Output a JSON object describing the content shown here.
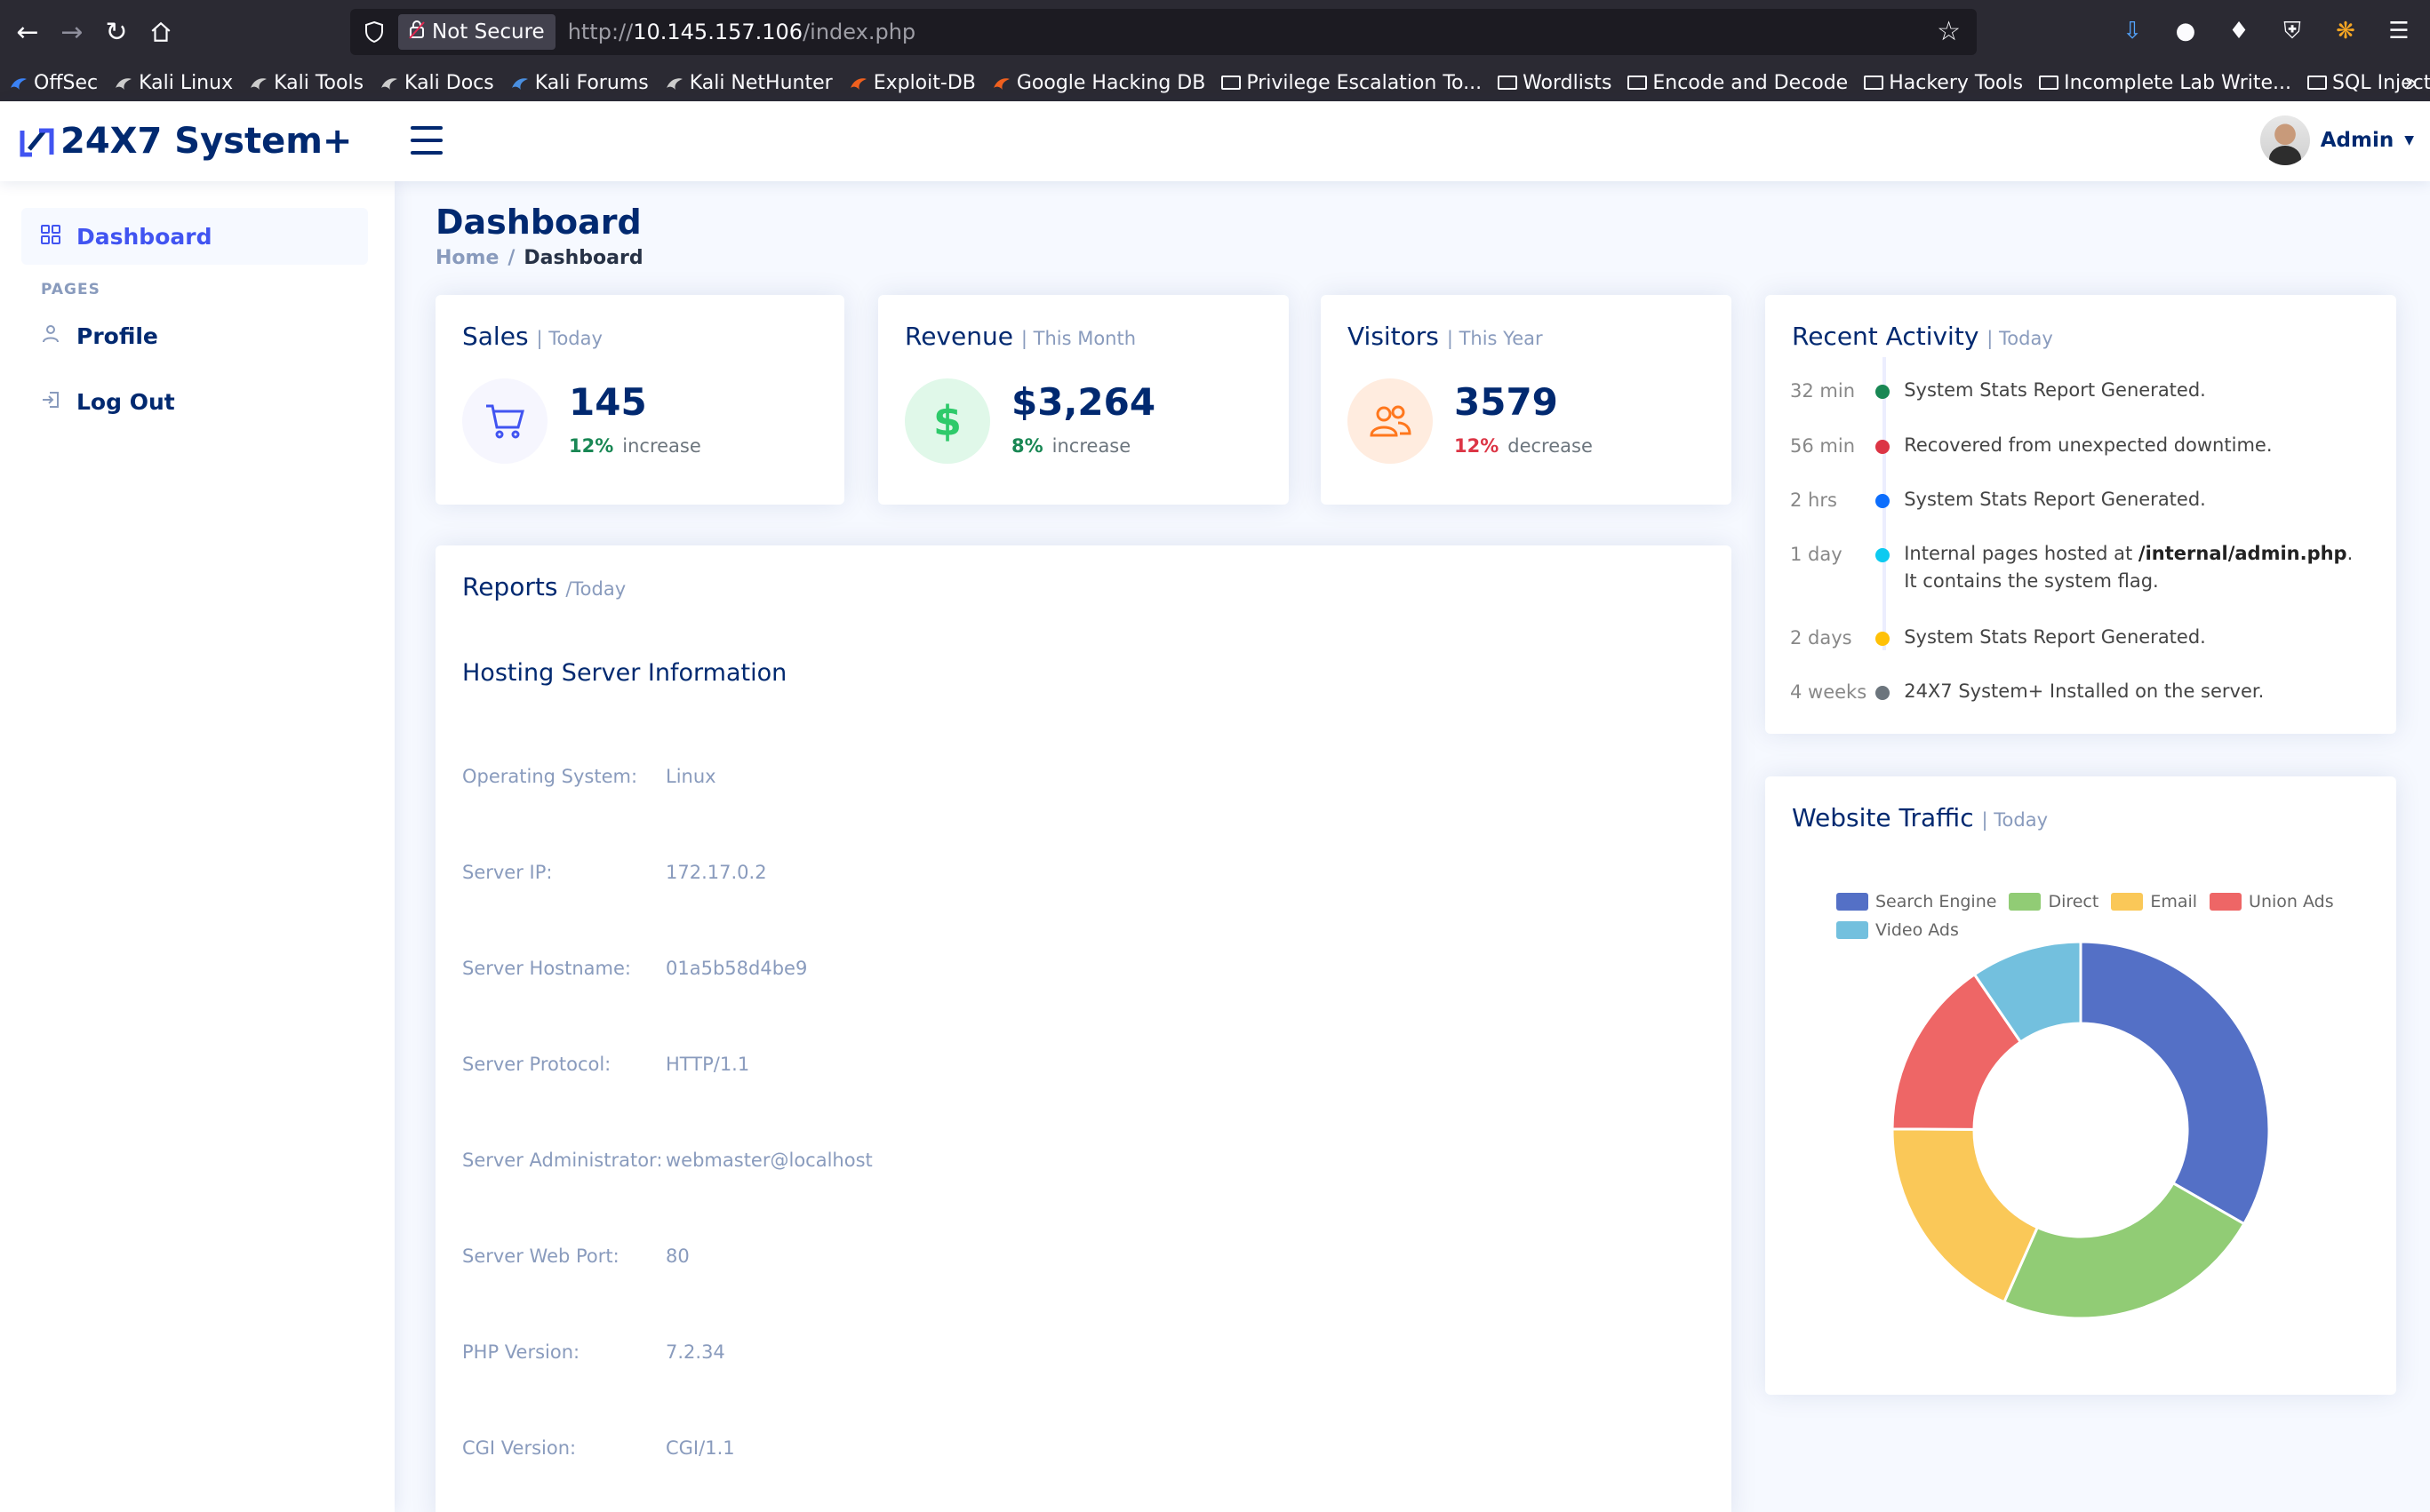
{
  "browser": {
    "security_label": "Not Secure",
    "url_scheme": "http://",
    "url_host": "10.145.157.106",
    "url_path": "/index.php",
    "bookmarks": [
      {
        "label": "OffSec",
        "icon": "offsec-icon",
        "color": "#3b82f6"
      },
      {
        "label": "Kali Linux",
        "icon": "kali-icon",
        "color": "#cccccc"
      },
      {
        "label": "Kali Tools",
        "icon": "kali-icon",
        "color": "#cccccc"
      },
      {
        "label": "Kali Docs",
        "icon": "kali-icon",
        "color": "#cccccc"
      },
      {
        "label": "Kali Forums",
        "icon": "kali-forums-icon",
        "color": "#4a8fe0"
      },
      {
        "label": "Kali NetHunter",
        "icon": "kali-icon",
        "color": "#cccccc"
      },
      {
        "label": "Exploit-DB",
        "icon": "exploitdb-icon",
        "color": "#f0601e"
      },
      {
        "label": "Google Hacking DB",
        "icon": "ghdb-icon",
        "color": "#f0601e"
      },
      {
        "label": "Privilege Escalation To...",
        "icon": "folder-icon"
      },
      {
        "label": "Wordlists",
        "icon": "folder-icon"
      },
      {
        "label": "Encode and Decode",
        "icon": "folder-icon"
      },
      {
        "label": "Hackery Tools",
        "icon": "folder-icon"
      },
      {
        "label": "Incomplete Lab Write...",
        "icon": "folder-icon"
      },
      {
        "label": "SQL Injection Tools",
        "icon": "folder-icon"
      }
    ]
  },
  "app": {
    "brand": "24X7 System+",
    "user_name": "Admin"
  },
  "sidebar": {
    "dashboard": "Dashboard",
    "heading": "PAGES",
    "profile": "Profile",
    "logout": "Log Out"
  },
  "page": {
    "title": "Dashboard",
    "breadcrumb_home": "Home",
    "breadcrumb_sep": "/",
    "breadcrumb_current": "Dashboard"
  },
  "cards": {
    "sales": {
      "title": "Sales",
      "sub": "| Today",
      "value": "145",
      "pct": "12%",
      "change": "increase",
      "pct_color": "#198754"
    },
    "revenue": {
      "title": "Revenue",
      "sub": "| This Month",
      "value": "$3,264",
      "pct": "8%",
      "change": "increase",
      "pct_color": "#198754"
    },
    "visitors": {
      "title": "Visitors",
      "sub": "| This Year",
      "value": "3579",
      "pct": "12%",
      "change": "decrease",
      "pct_color": "#dc3545"
    }
  },
  "reports": {
    "title": "Reports",
    "sub": "/Today",
    "heading": "Hosting Server Information",
    "rows": [
      {
        "label": "Operating System:",
        "value": "Linux"
      },
      {
        "label": "Server IP:",
        "value": "172.17.0.2"
      },
      {
        "label": "Server Hostname:",
        "value": "01a5b58d4be9"
      },
      {
        "label": "Server Protocol:",
        "value": "HTTP/1.1"
      },
      {
        "label": "Server Administrator:",
        "value": "webmaster@localhost"
      },
      {
        "label": "Server Web Port:",
        "value": "80"
      },
      {
        "label": "PHP Version:",
        "value": "7.2.34"
      },
      {
        "label": "CGI Version:",
        "value": "CGI/1.1"
      }
    ]
  },
  "activity": {
    "title": "Recent Activity",
    "sub": "| Today",
    "items": [
      {
        "time": "32 min",
        "color": "#198754",
        "text": "System Stats Report Generated."
      },
      {
        "time": "56 min",
        "color": "#dc3545",
        "text": "Recovered from unexpected downtime."
      },
      {
        "time": "2 hrs",
        "color": "#0d6efd",
        "text": "System Stats Report Generated."
      },
      {
        "time": "1 day",
        "color": "#0dcaf0",
        "text_pre": "Internal pages hosted at ",
        "text_bold": "/internal/admin.php",
        "text_post": ". It contains the system flag."
      },
      {
        "time": "2 days",
        "color": "#ffc107",
        "text": "System Stats Report Generated."
      },
      {
        "time": "4 weeks",
        "color": "#6c757d",
        "text": "24X7 System+ Installed on the server."
      }
    ]
  },
  "traffic": {
    "title": "Website Traffic",
    "sub": "| Today"
  },
  "chart_data": {
    "type": "pie",
    "categories": [
      "Search Engine",
      "Direct",
      "Email",
      "Union Ads",
      "Video Ads"
    ],
    "values": [
      1048,
      735,
      580,
      484,
      300
    ],
    "colors": [
      "#5470c6",
      "#91cc75",
      "#fac858",
      "#ee6666",
      "#73c0de"
    ],
    "donut": true,
    "legend_position": "top"
  }
}
